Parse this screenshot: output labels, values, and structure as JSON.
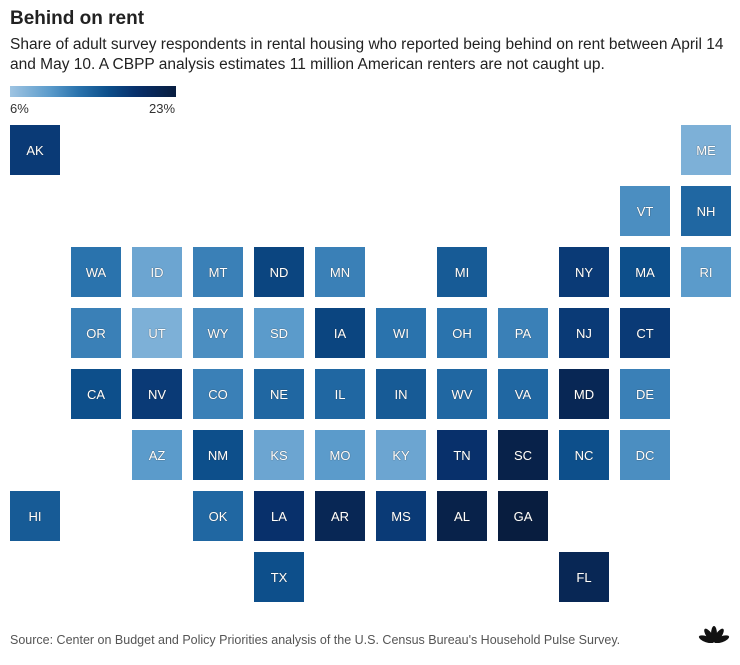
{
  "title": "Behind on rent",
  "subtitle": "Share of adult survey respondents in rental housing who reported being behind on rent between April 14 and May 10. A CBPP analysis estimates 11 million American renters are not caught up.",
  "source": "Source: Center on Budget and Policy Priorities analysis of the U.S. Census Bureau's Household Pulse Survey.",
  "logo": "CNBC",
  "chart_data": {
    "type": "heatmap",
    "title": "Behind on rent",
    "legend": {
      "min_label": "6%",
      "max_label": "23%",
      "min": 6,
      "max": 23
    },
    "tiles": [
      {
        "state": "AK",
        "row": 0,
        "col": 0,
        "value": 18
      },
      {
        "state": "ME",
        "row": 0,
        "col": 11,
        "value": 8
      },
      {
        "state": "VT",
        "row": 1,
        "col": 10,
        "value": 11
      },
      {
        "state": "NH",
        "row": 1,
        "col": 11,
        "value": 14
      },
      {
        "state": "WA",
        "row": 2,
        "col": 1,
        "value": 13
      },
      {
        "state": "ID",
        "row": 2,
        "col": 2,
        "value": 9
      },
      {
        "state": "MT",
        "row": 2,
        "col": 3,
        "value": 12
      },
      {
        "state": "ND",
        "row": 2,
        "col": 4,
        "value": 17
      },
      {
        "state": "MN",
        "row": 2,
        "col": 5,
        "value": 12
      },
      {
        "state": "MI",
        "row": 2,
        "col": 7,
        "value": 15
      },
      {
        "state": "NY",
        "row": 2,
        "col": 9,
        "value": 18
      },
      {
        "state": "MA",
        "row": 2,
        "col": 10,
        "value": 16
      },
      {
        "state": "RI",
        "row": 2,
        "col": 11,
        "value": 10
      },
      {
        "state": "OR",
        "row": 3,
        "col": 1,
        "value": 12
      },
      {
        "state": "UT",
        "row": 3,
        "col": 2,
        "value": 8
      },
      {
        "state": "WY",
        "row": 3,
        "col": 3,
        "value": 11
      },
      {
        "state": "SD",
        "row": 3,
        "col": 4,
        "value": 10
      },
      {
        "state": "IA",
        "row": 3,
        "col": 5,
        "value": 17
      },
      {
        "state": "WI",
        "row": 3,
        "col": 6,
        "value": 13
      },
      {
        "state": "OH",
        "row": 3,
        "col": 7,
        "value": 13
      },
      {
        "state": "PA",
        "row": 3,
        "col": 8,
        "value": 12
      },
      {
        "state": "NJ",
        "row": 3,
        "col": 9,
        "value": 18
      },
      {
        "state": "CT",
        "row": 3,
        "col": 10,
        "value": 18
      },
      {
        "state": "CA",
        "row": 4,
        "col": 1,
        "value": 16
      },
      {
        "state": "NV",
        "row": 4,
        "col": 2,
        "value": 18
      },
      {
        "state": "CO",
        "row": 4,
        "col": 3,
        "value": 12
      },
      {
        "state": "NE",
        "row": 4,
        "col": 4,
        "value": 14
      },
      {
        "state": "IL",
        "row": 4,
        "col": 5,
        "value": 14
      },
      {
        "state": "IN",
        "row": 4,
        "col": 6,
        "value": 15
      },
      {
        "state": "WV",
        "row": 4,
        "col": 7,
        "value": 14
      },
      {
        "state": "VA",
        "row": 4,
        "col": 8,
        "value": 14
      },
      {
        "state": "MD",
        "row": 4,
        "col": 9,
        "value": 21
      },
      {
        "state": "DE",
        "row": 4,
        "col": 10,
        "value": 12
      },
      {
        "state": "AZ",
        "row": 5,
        "col": 2,
        "value": 10
      },
      {
        "state": "NM",
        "row": 5,
        "col": 3,
        "value": 16
      },
      {
        "state": "KS",
        "row": 5,
        "col": 4,
        "value": 9
      },
      {
        "state": "MO",
        "row": 5,
        "col": 5,
        "value": 10
      },
      {
        "state": "KY",
        "row": 5,
        "col": 6,
        "value": 9
      },
      {
        "state": "TN",
        "row": 5,
        "col": 7,
        "value": 19
      },
      {
        "state": "SC",
        "row": 5,
        "col": 8,
        "value": 22
      },
      {
        "state": "NC",
        "row": 5,
        "col": 9,
        "value": 16
      },
      {
        "state": "DC",
        "row": 5,
        "col": 10,
        "value": 11
      },
      {
        "state": "HI",
        "row": 6,
        "col": 0,
        "value": 15
      },
      {
        "state": "OK",
        "row": 6,
        "col": 3,
        "value": 14
      },
      {
        "state": "LA",
        "row": 6,
        "col": 4,
        "value": 19
      },
      {
        "state": "AR",
        "row": 6,
        "col": 5,
        "value": 21
      },
      {
        "state": "MS",
        "row": 6,
        "col": 6,
        "value": 18
      },
      {
        "state": "AL",
        "row": 6,
        "col": 7,
        "value": 22
      },
      {
        "state": "GA",
        "row": 6,
        "col": 8,
        "value": 23
      },
      {
        "state": "TX",
        "row": 7,
        "col": 4,
        "value": 16
      },
      {
        "state": "FL",
        "row": 7,
        "col": 9,
        "value": 21
      }
    ]
  }
}
